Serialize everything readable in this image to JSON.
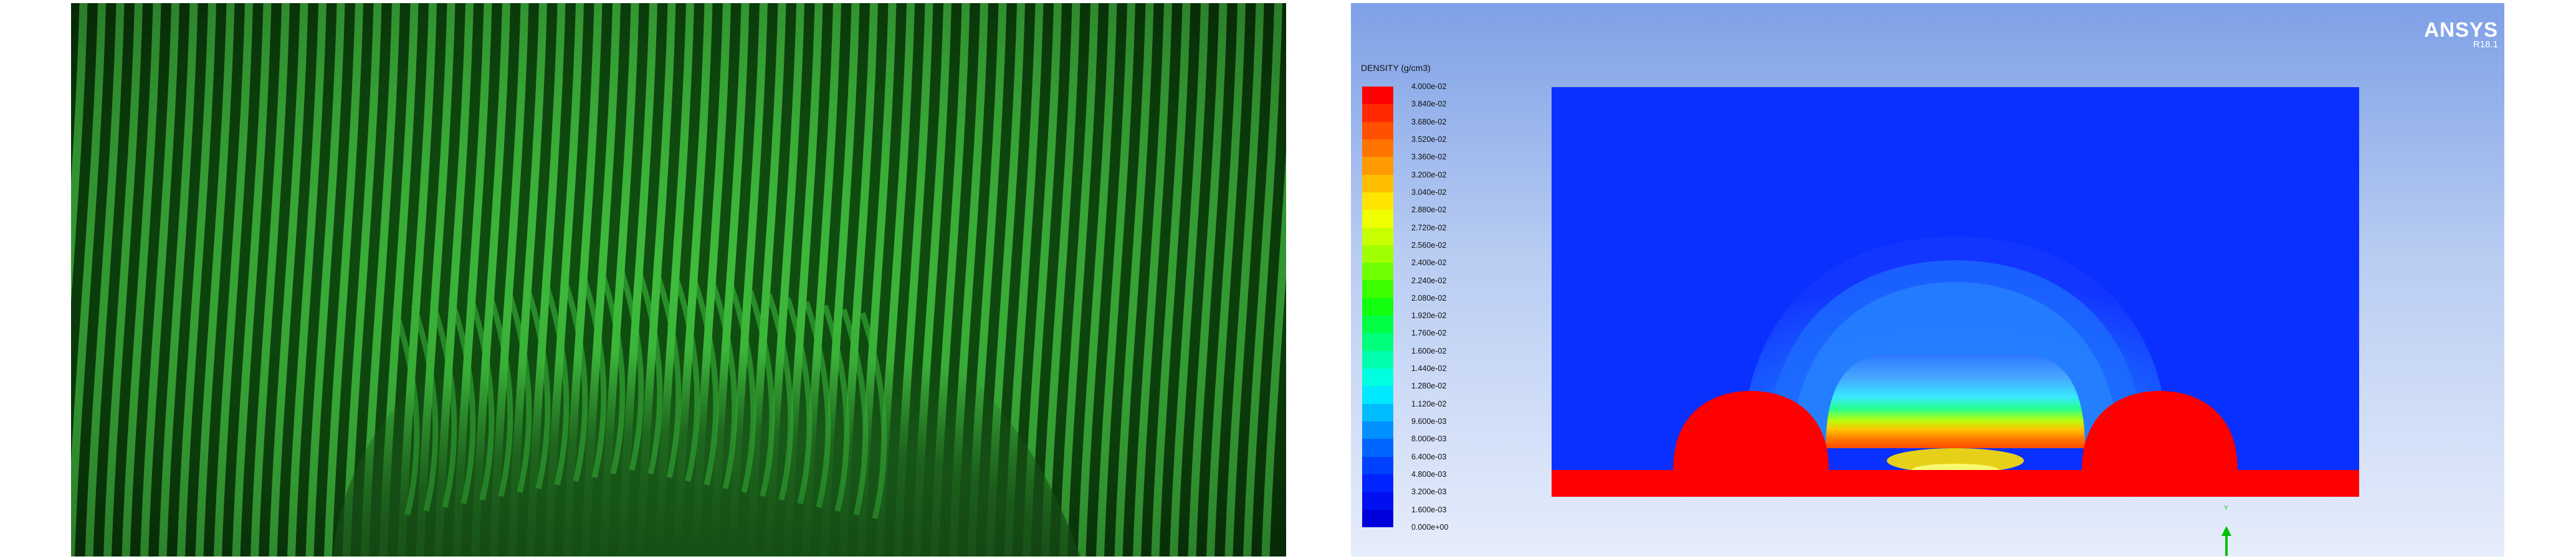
{
  "simulation": {
    "software_name": "ANSYS",
    "software_version": "R18.1",
    "legend_title": "DENSITY (g/cm3)",
    "legend_ticks": [
      "4.000e-02",
      "3.840e-02",
      "3.680e-02",
      "3.520e-02",
      "3.360e-02",
      "3.200e-02",
      "3.040e-02",
      "2.880e-02",
      "2.720e-02",
      "2.560e-02",
      "2.400e-02",
      "2.240e-02",
      "2.080e-02",
      "1.920e-02",
      "1.760e-02",
      "1.600e-02",
      "1.440e-02",
      "1.280e-02",
      "1.120e-02",
      "9.600e-03",
      "8.000e-03",
      "6.400e-03",
      "4.800e-03",
      "3.200e-03",
      "1.600e-03",
      "0.000e+00"
    ],
    "legend_colors": [
      "#ff0000",
      "#ff2a00",
      "#ff5000",
      "#ff7400",
      "#ff9a00",
      "#ffbf00",
      "#ffe400",
      "#f0ff00",
      "#c8ff00",
      "#a0ff00",
      "#6eff00",
      "#3cff00",
      "#12ff10",
      "#00ff44",
      "#00ff7a",
      "#00ffae",
      "#00ffe0",
      "#00e8ff",
      "#00bcff",
      "#0090ff",
      "#0064ff",
      "#0040ff",
      "#0024ff",
      "#0010f0",
      "#0000dc"
    ]
  }
}
